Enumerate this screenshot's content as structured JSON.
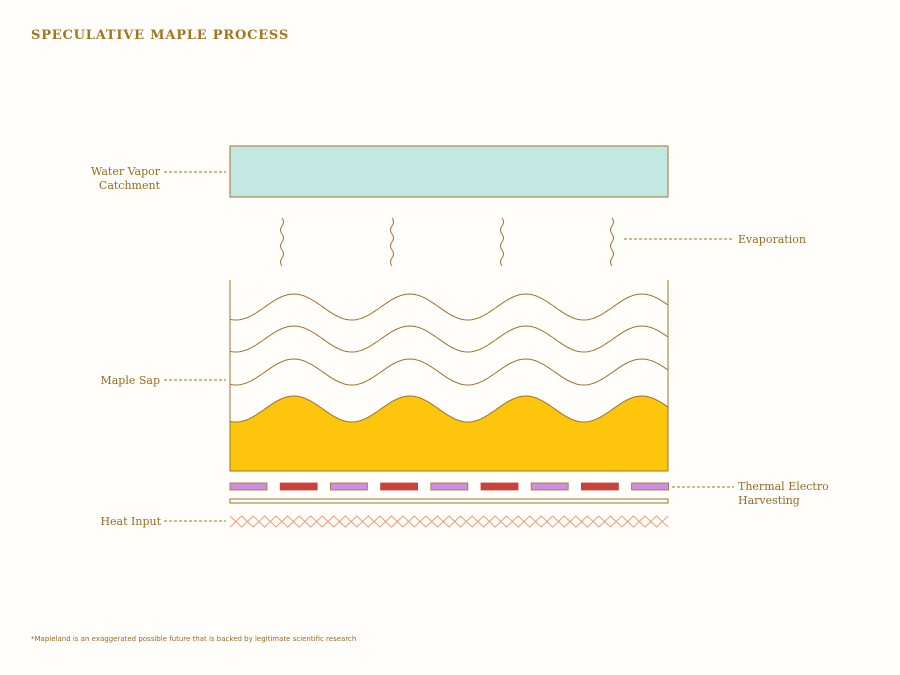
{
  "title": "SPECULATIVE MAPLE PROCESS",
  "labels": {
    "water_vapor_line1": "Water Vapor",
    "water_vapor_line2": "Catchment",
    "evaporation": "Evaporation",
    "maple_sap": "Maple Sap",
    "thermal_line1": "Thermal Electro",
    "thermal_line2": "Harvesting",
    "heat_input": "Heat Input"
  },
  "footnote": "*Mapleland is an exaggerated possible future that is backed by legitimate scientific research",
  "colors": {
    "ink": "#a0712a",
    "catchment_fill": "#bfe6e1",
    "sap_fill": "#fdc50c",
    "thermal_purple": "#cf8fe0",
    "thermal_red": "#c9433b",
    "heat_zigzag": "#f0a07a"
  }
}
